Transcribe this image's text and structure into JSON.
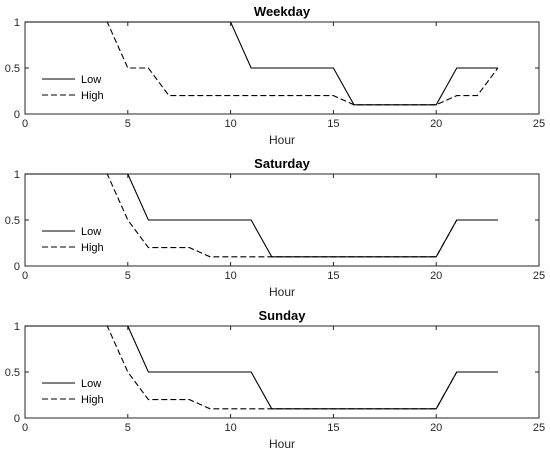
{
  "chart_data": [
    {
      "type": "line",
      "title": "Weekday",
      "xlabel": "Hour",
      "ylabel": "",
      "xlim": [
        0,
        25
      ],
      "ylim": [
        0,
        1
      ],
      "xticks": [
        0,
        5,
        10,
        15,
        20,
        25
      ],
      "yticks": [
        0,
        0.5,
        1
      ],
      "grid": false,
      "legend_position": "left",
      "series": [
        {
          "name": "Low",
          "style": "solid",
          "x": [
            0,
            1,
            2,
            3,
            4,
            5,
            6,
            7,
            8,
            9,
            10,
            11,
            12,
            13,
            14,
            15,
            16,
            17,
            18,
            19,
            20,
            21,
            22,
            23
          ],
          "y": [
            1,
            1,
            1,
            1,
            1,
            1,
            1,
            1,
            1,
            1,
            1,
            0.5,
            0.5,
            0.5,
            0.5,
            0.5,
            0.1,
            0.1,
            0.1,
            0.1,
            0.1,
            0.5,
            0.5,
            0.5
          ]
        },
        {
          "name": "High",
          "style": "dashed",
          "x": [
            0,
            1,
            2,
            3,
            4,
            5,
            6,
            7,
            8,
            9,
            10,
            11,
            12,
            13,
            14,
            15,
            16,
            17,
            18,
            19,
            20,
            21,
            22,
            23
          ],
          "y": [
            1,
            1,
            1,
            1,
            1,
            0.5,
            0.5,
            0.2,
            0.2,
            0.2,
            0.2,
            0.2,
            0.2,
            0.2,
            0.2,
            0.2,
            0.1,
            0.1,
            0.1,
            0.1,
            0.1,
            0.2,
            0.2,
            0.5
          ]
        }
      ]
    },
    {
      "type": "line",
      "title": "Saturday",
      "xlabel": "Hour",
      "ylabel": "",
      "xlim": [
        0,
        25
      ],
      "ylim": [
        0,
        1
      ],
      "xticks": [
        0,
        5,
        10,
        15,
        20,
        25
      ],
      "yticks": [
        0,
        0.5,
        1
      ],
      "grid": false,
      "legend_position": "left",
      "series": [
        {
          "name": "Low",
          "style": "solid",
          "x": [
            0,
            1,
            2,
            3,
            4,
            5,
            6,
            7,
            8,
            9,
            10,
            11,
            12,
            13,
            14,
            15,
            16,
            17,
            18,
            19,
            20,
            21,
            22,
            23
          ],
          "y": [
            1,
            1,
            1,
            1,
            1,
            1,
            0.5,
            0.5,
            0.5,
            0.5,
            0.5,
            0.5,
            0.1,
            0.1,
            0.1,
            0.1,
            0.1,
            0.1,
            0.1,
            0.1,
            0.1,
            0.5,
            0.5,
            0.5
          ]
        },
        {
          "name": "High",
          "style": "dashed",
          "x": [
            0,
            1,
            2,
            3,
            4,
            5,
            6,
            7,
            8,
            9,
            10,
            11,
            12,
            13,
            14,
            15,
            16,
            17,
            18,
            19,
            20,
            21,
            22,
            23
          ],
          "y": [
            1,
            1,
            1,
            1,
            1,
            0.5,
            0.2,
            0.2,
            0.2,
            0.1,
            0.1,
            0.1,
            0.1,
            0.1,
            0.1,
            0.1,
            0.1,
            0.1,
            0.1,
            0.1,
            0.1,
            0.5,
            0.5,
            0.5
          ]
        }
      ]
    },
    {
      "type": "line",
      "title": "Sunday",
      "xlabel": "Hour",
      "ylabel": "",
      "xlim": [
        0,
        25
      ],
      "ylim": [
        0,
        1
      ],
      "xticks": [
        0,
        5,
        10,
        15,
        20,
        25
      ],
      "yticks": [
        0,
        0.5,
        1
      ],
      "grid": false,
      "legend_position": "left",
      "series": [
        {
          "name": "Low",
          "style": "solid",
          "x": [
            0,
            1,
            2,
            3,
            4,
            5,
            6,
            7,
            8,
            9,
            10,
            11,
            12,
            13,
            14,
            15,
            16,
            17,
            18,
            19,
            20,
            21,
            22,
            23
          ],
          "y": [
            1,
            1,
            1,
            1,
            1,
            1,
            0.5,
            0.5,
            0.5,
            0.5,
            0.5,
            0.5,
            0.1,
            0.1,
            0.1,
            0.1,
            0.1,
            0.1,
            0.1,
            0.1,
            0.1,
            0.5,
            0.5,
            0.5
          ]
        },
        {
          "name": "High",
          "style": "dashed",
          "x": [
            0,
            1,
            2,
            3,
            4,
            5,
            6,
            7,
            8,
            9,
            10,
            11,
            12,
            13,
            14,
            15,
            16,
            17,
            18,
            19,
            20,
            21,
            22,
            23
          ],
          "y": [
            1,
            1,
            1,
            1,
            1,
            0.5,
            0.2,
            0.2,
            0.2,
            0.1,
            0.1,
            0.1,
            0.1,
            0.1,
            0.1,
            0.1,
            0.1,
            0.1,
            0.1,
            0.1,
            0.1,
            0.5,
            0.5,
            0.5
          ]
        }
      ]
    }
  ],
  "colors": {
    "line": "#000000",
    "axis": "#262626",
    "background": "#ffffff"
  }
}
